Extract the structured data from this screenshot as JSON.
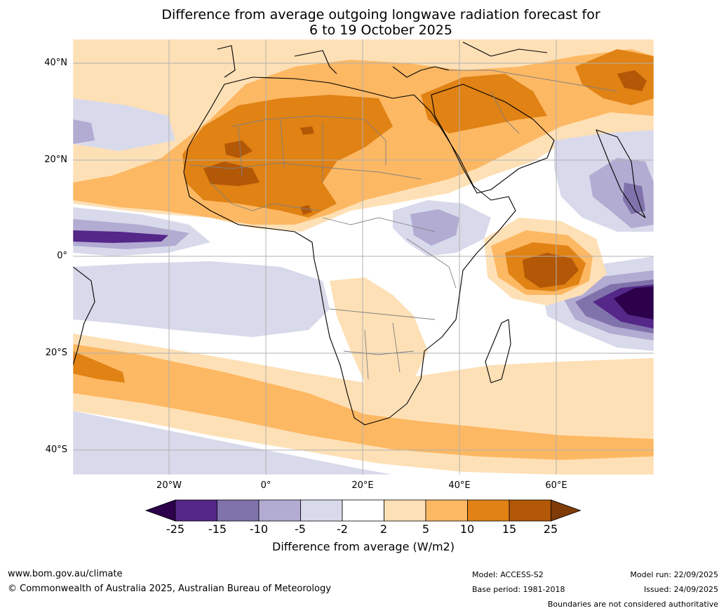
{
  "title": {
    "line1": "Difference from average outgoing longwave radiation forecast for",
    "line2": "6 to 19 October 2025"
  },
  "axes": {
    "lat_labels": [
      "40°N",
      "20°N",
      "0°",
      "20°S",
      "40°S"
    ],
    "lon_labels": [
      "20°W",
      "0°",
      "20°E",
      "40°E",
      "60°E"
    ]
  },
  "colorbar": {
    "ticks": [
      "-25",
      "-15",
      "-10",
      "-5",
      "-2",
      "2",
      "5",
      "10",
      "15",
      "25"
    ],
    "colors": [
      "#2d004b",
      "#542788",
      "#8073ac",
      "#b2abd2",
      "#d8daeb",
      "#ffffff",
      "#fee0b6",
      "#fdb863",
      "#e08214",
      "#b35806",
      "#7f3b08"
    ],
    "label": "Difference from average (W/m2)"
  },
  "footer": {
    "website": "www.bom.gov.au/climate",
    "copyright": "© Commonwealth of Australia 2025, Australian Bureau of Meteorology",
    "model": "Model: ACCESS-S2",
    "base_period": "Base period: 1981-2018",
    "model_run": "Model run: 22/09/2025",
    "issued": "Issued: 24/09/2025",
    "disclaimer": "Boundaries are not considered authoritative"
  },
  "icons": {
    "colorbar_left_arrow": "triangle-left-icon",
    "colorbar_right_arrow": "triangle-right-icon"
  }
}
